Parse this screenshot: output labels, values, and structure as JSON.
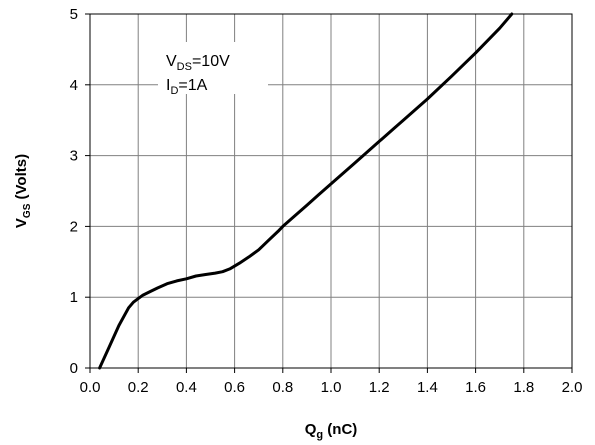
{
  "chart_data": {
    "type": "line",
    "xlabel": {
      "main": "Q",
      "sub": "g",
      "rest": " (nC)"
    },
    "ylabel": {
      "main": "V",
      "sub": "GS",
      "rest": " (Volts)"
    },
    "xlim": [
      0,
      2
    ],
    "ylim": [
      0,
      5
    ],
    "xticks": [
      "0.0",
      "0.2",
      "0.4",
      "0.6",
      "0.8",
      "1.0",
      "1.2",
      "1.4",
      "1.6",
      "1.8",
      "2.0"
    ],
    "yticks": [
      "0",
      "1",
      "2",
      "3",
      "4",
      "5"
    ],
    "grid": true,
    "annotation": {
      "line1": {
        "main": "V",
        "sub": "DS",
        "rest": "=10V"
      },
      "line2": {
        "main": "I",
        "sub": "D",
        "rest": "=1A"
      }
    },
    "series": [
      {
        "color": "#000000",
        "x": [
          0.04,
          0.08,
          0.12,
          0.16,
          0.18,
          0.2,
          0.22,
          0.25,
          0.28,
          0.32,
          0.36,
          0.4,
          0.44,
          0.48,
          0.52,
          0.55,
          0.58,
          0.62,
          0.66,
          0.7,
          0.74,
          0.78,
          0.8,
          0.85,
          0.9,
          0.95,
          1.0,
          1.1,
          1.2,
          1.3,
          1.4,
          1.5,
          1.6,
          1.7,
          1.75
        ],
        "y": [
          0.0,
          0.3,
          0.6,
          0.85,
          0.93,
          0.98,
          1.03,
          1.08,
          1.13,
          1.19,
          1.23,
          1.26,
          1.3,
          1.32,
          1.34,
          1.36,
          1.4,
          1.48,
          1.57,
          1.67,
          1.8,
          1.93,
          2.0,
          2.15,
          2.3,
          2.45,
          2.6,
          2.9,
          3.2,
          3.5,
          3.8,
          4.12,
          4.45,
          4.8,
          5.0
        ]
      }
    ]
  }
}
